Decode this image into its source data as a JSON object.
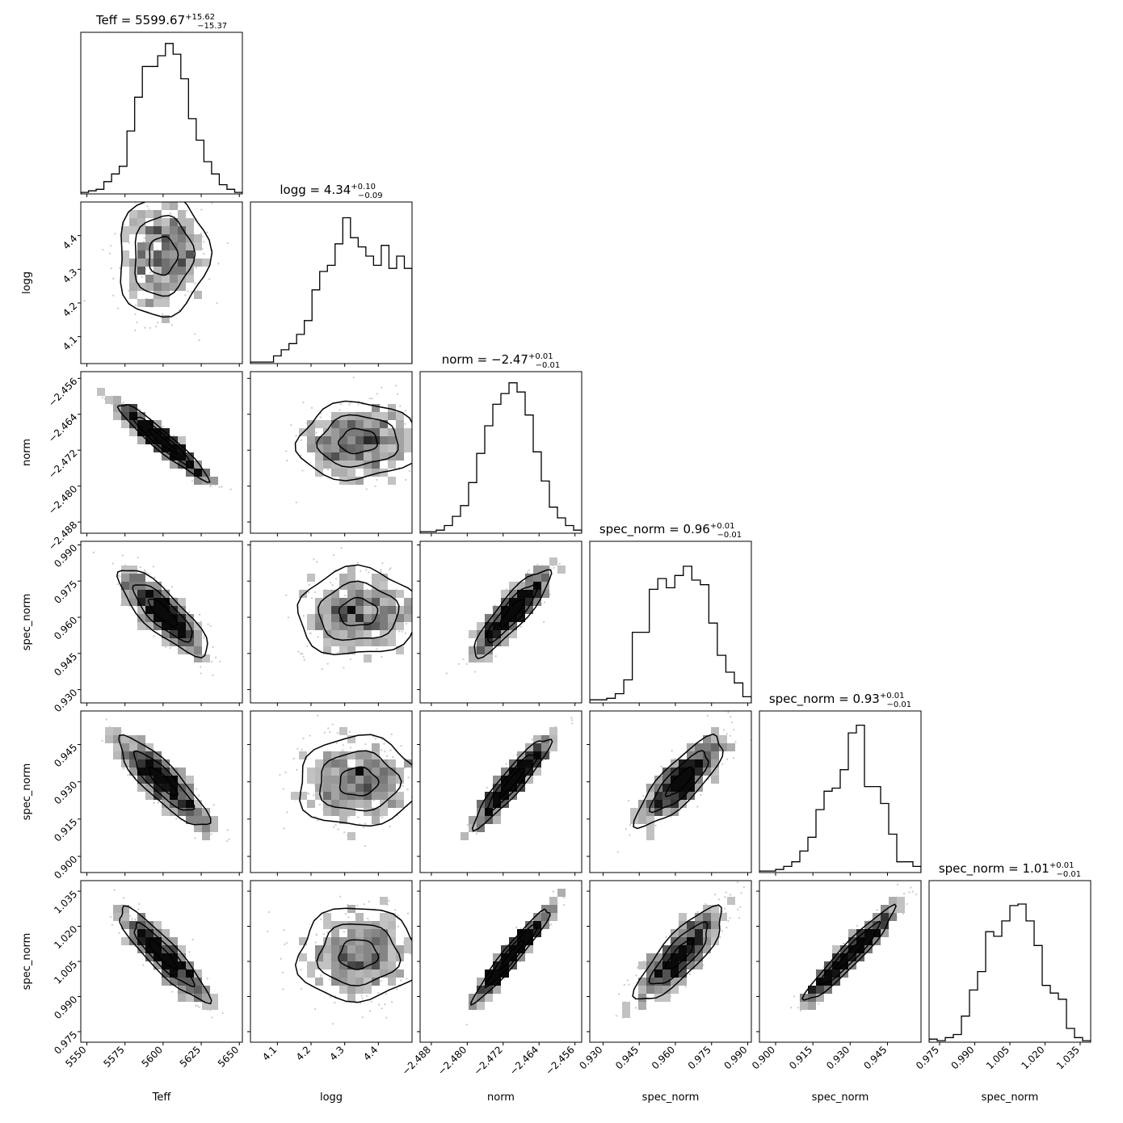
{
  "chart_data": {
    "type": "corner",
    "parameters": [
      {
        "name": "Teff",
        "xlabel": "Teff",
        "ylabel": "",
        "title_main": "Teff = 5599.67",
        "title_sup": "+15.62",
        "title_sub": "−15.37",
        "range": [
          5546.0,
          5652.0
        ],
        "ticks": [
          5550,
          5575,
          5600,
          5625,
          5650
        ],
        "tick_labels": [
          "5550",
          "5575",
          "5600",
          "5625",
          "5650"
        ],
        "median": 5599.67,
        "sigma": 15.5,
        "hist": [
          0.01,
          0.02,
          0.03,
          0.08,
          0.13,
          0.18,
          0.41,
          0.63,
          0.83,
          0.83,
          0.9,
          0.98,
          0.91,
          0.75,
          0.49,
          0.35,
          0.21,
          0.13,
          0.06,
          0.03,
          0.01
        ]
      },
      {
        "name": "logg",
        "xlabel": "logg",
        "ylabel": "logg",
        "title_main": "logg = 4.34",
        "title_sup": "+0.10",
        "title_sub": "−0.09",
        "range": [
          4.02,
          4.5
        ],
        "ticks": [
          4.1,
          4.2,
          4.3,
          4.4
        ],
        "tick_labels": [
          "4.1",
          "4.2",
          "4.3",
          "4.4"
        ],
        "median": 4.34,
        "sigma": 0.095,
        "hist": [
          0.01,
          0.01,
          0.01,
          0.05,
          0.09,
          0.13,
          0.19,
          0.28,
          0.48,
          0.6,
          0.64,
          0.78,
          0.95,
          0.82,
          0.76,
          0.7,
          0.64,
          0.77,
          0.62,
          0.7,
          0.62
        ]
      },
      {
        "name": "norm",
        "xlabel": "norm",
        "ylabel": "norm",
        "title_main": "norm = −2.47",
        "title_sup": "+0.01",
        "title_sub": "−0.01",
        "range": [
          -2.4905,
          -2.4545
        ],
        "ticks": [
          -2.488,
          -2.48,
          -2.472,
          -2.464,
          -2.456
        ],
        "tick_labels": [
          "−2.488",
          "−2.480",
          "−2.472",
          "−2.464",
          "−2.456"
        ],
        "median": -2.47,
        "sigma": 0.0045,
        "hist": [
          0.01,
          0.01,
          0.02,
          0.05,
          0.11,
          0.18,
          0.33,
          0.52,
          0.7,
          0.84,
          0.91,
          0.98,
          0.92,
          0.77,
          0.53,
          0.34,
          0.17,
          0.1,
          0.05,
          0.02
        ]
      },
      {
        "name": "spec_norm",
        "xlabel": "spec_norm",
        "ylabel": "spec_norm",
        "title_main": "spec_norm = 0.96",
        "title_sup": "+0.01",
        "title_sub": "−0.01",
        "range": [
          0.9245,
          0.9915
        ],
        "ticks": [
          0.93,
          0.945,
          0.96,
          0.975,
          0.99
        ],
        "tick_labels": [
          "0.930",
          "0.945",
          "0.960",
          "0.975",
          "0.990"
        ],
        "median": 0.962,
        "sigma": 0.0095,
        "hist": [
          0.02,
          0.02,
          0.03,
          0.06,
          0.15,
          0.46,
          0.46,
          0.74,
          0.81,
          0.75,
          0.83,
          0.89,
          0.8,
          0.77,
          0.52,
          0.31,
          0.2,
          0.13,
          0.04
        ]
      },
      {
        "name": "spec_norm",
        "xlabel": "spec_norm",
        "ylabel": "spec_norm",
        "title_main": "spec_norm = 0.93",
        "title_sup": "+0.01",
        "title_sub": "−0.01",
        "range": [
          0.8935,
          0.9585
        ],
        "ticks": [
          0.9,
          0.915,
          0.93,
          0.945
        ],
        "tick_labels": [
          "0.900",
          "0.915",
          "0.930",
          "0.945"
        ],
        "median": 0.93,
        "sigma": 0.0095,
        "hist": [
          0.01,
          0.01,
          0.02,
          0.04,
          0.07,
          0.14,
          0.23,
          0.41,
          0.53,
          0.55,
          0.67,
          0.91,
          0.96,
          0.56,
          0.56,
          0.45,
          0.25,
          0.07,
          0.07,
          0.04
        ]
      },
      {
        "name": "spec_norm",
        "xlabel": "spec_norm",
        "ylabel": "spec_norm",
        "title_main": "spec_norm = 1.01",
        "title_sup": "+0.01",
        "title_sub": "−0.01",
        "range": [
          0.9705,
          1.0395
        ],
        "ticks": [
          0.975,
          0.99,
          1.005,
          1.02,
          1.035
        ],
        "tick_labels": [
          "0.975",
          "0.990",
          "1.005",
          "1.020",
          "1.035"
        ],
        "median": 1.008,
        "sigma": 0.0105,
        "hist": [
          0.02,
          0.01,
          0.03,
          0.05,
          0.17,
          0.34,
          0.46,
          0.72,
          0.69,
          0.79,
          0.89,
          0.9,
          0.79,
          0.63,
          0.37,
          0.32,
          0.28,
          0.09,
          0.03,
          0.01
        ]
      }
    ],
    "correlations": {
      "1_0": 0.05,
      "2_0": -0.95,
      "2_1": 0.05,
      "3_0": -0.82,
      "3_1": 0.02,
      "3_2": 0.88,
      "4_0": -0.86,
      "4_1": 0.02,
      "4_2": 0.93,
      "4_3": 0.82,
      "5_0": -0.9,
      "5_1": 0.02,
      "5_2": 0.96,
      "5_3": 0.82,
      "5_4": 0.95
    },
    "grid": false,
    "legend": "none"
  }
}
